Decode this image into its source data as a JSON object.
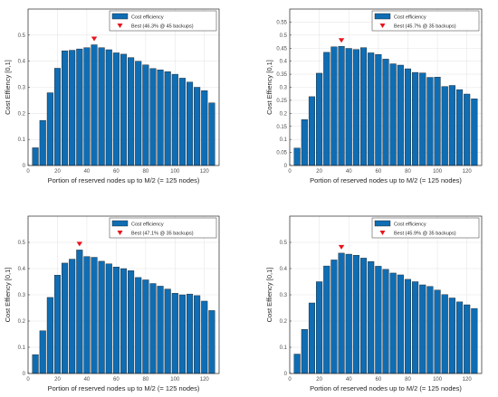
{
  "colors": {
    "bar": "#0f6db3",
    "bar_edge": "#1a1a1a",
    "marker": "#e8141b",
    "grid": "#e6e6e6",
    "axis": "#262626"
  },
  "chart_data": [
    {
      "type": "bar",
      "xlabel": "Portion of reserved nodes up to M/2 (= 125 nodes)",
      "ylabel": "Cost Effiency [0,1]",
      "xlim": [
        0,
        130
      ],
      "ylim": [
        0,
        0.6
      ],
      "xticks": [
        "0",
        "20",
        "40",
        "60",
        "80",
        "100",
        "120"
      ],
      "yticks": [
        "0",
        "0.1",
        "0.2",
        "0.3",
        "0.4",
        "0.5"
      ],
      "grid": true,
      "legend": {
        "placement": "top-right",
        "entries": [
          "Cost efficiency",
          "Best (46.3% @ 45 backups)"
        ]
      },
      "series": [
        {
          "name": "Cost efficiency",
          "x": [
            5,
            10,
            15,
            20,
            25,
            30,
            35,
            40,
            45,
            50,
            55,
            60,
            65,
            70,
            75,
            80,
            85,
            90,
            95,
            100,
            105,
            110,
            115,
            120,
            125
          ],
          "values": [
            0.068,
            0.173,
            0.279,
            0.373,
            0.44,
            0.442,
            0.447,
            0.452,
            0.463,
            0.452,
            0.444,
            0.432,
            0.427,
            0.414,
            0.4,
            0.386,
            0.372,
            0.367,
            0.36,
            0.35,
            0.335,
            0.32,
            0.3,
            0.287,
            0.24
          ]
        }
      ],
      "best": {
        "x": 45,
        "y": 0.463
      }
    },
    {
      "type": "bar",
      "xlabel": "Portion of reserved nodes up to M/2 (= 125 nodes)",
      "ylabel": "Cost Effiency [0,1]",
      "xlim": [
        0,
        130
      ],
      "ylim": [
        0,
        0.6
      ],
      "xticks": [
        "0",
        "20",
        "40",
        "60",
        "80",
        "100",
        "120"
      ],
      "yticks": [
        "0",
        "0.05",
        "0.1",
        "0.15",
        "0.2",
        "0.25",
        "0.3",
        "0.35",
        "0.4",
        "0.45",
        "0.5",
        "0.55"
      ],
      "grid": true,
      "legend": {
        "placement": "top-right",
        "entries": [
          "Cost efficiency",
          "Best (45.7% @ 35 backups)"
        ]
      },
      "series": [
        {
          "name": "Cost efficiency",
          "x": [
            5,
            10,
            15,
            20,
            25,
            30,
            35,
            40,
            45,
            50,
            55,
            60,
            65,
            70,
            75,
            80,
            85,
            90,
            95,
            100,
            105,
            110,
            115,
            120,
            125
          ],
          "values": [
            0.067,
            0.176,
            0.264,
            0.354,
            0.434,
            0.455,
            0.457,
            0.449,
            0.445,
            0.452,
            0.432,
            0.426,
            0.408,
            0.39,
            0.385,
            0.371,
            0.357,
            0.355,
            0.338,
            0.339,
            0.303,
            0.307,
            0.291,
            0.274,
            0.256
          ]
        }
      ],
      "best": {
        "x": 35,
        "y": 0.457
      }
    },
    {
      "type": "bar",
      "xlabel": "Portion of reserved nodes up to M/2 (= 125 nodes)",
      "ylabel": "Cost Effiency [0,1]",
      "xlim": [
        0,
        130
      ],
      "ylim": [
        0,
        0.6
      ],
      "xticks": [
        "0",
        "20",
        "40",
        "60",
        "80",
        "100",
        "120"
      ],
      "yticks": [
        "0",
        "0.1",
        "0.2",
        "0.3",
        "0.4",
        "0.5"
      ],
      "grid": true,
      "legend": {
        "placement": "top-right",
        "entries": [
          "Cost efficiency",
          "Best (47.1% @ 35 backups)"
        ]
      },
      "series": [
        {
          "name": "Cost efficiency",
          "x": [
            5,
            10,
            15,
            20,
            25,
            30,
            35,
            40,
            45,
            50,
            55,
            60,
            65,
            70,
            75,
            80,
            85,
            90,
            95,
            100,
            105,
            110,
            115,
            120,
            125
          ],
          "values": [
            0.072,
            0.163,
            0.29,
            0.375,
            0.421,
            0.436,
            0.471,
            0.446,
            0.443,
            0.428,
            0.418,
            0.406,
            0.4,
            0.392,
            0.366,
            0.357,
            0.343,
            0.333,
            0.322,
            0.306,
            0.3,
            0.303,
            0.297,
            0.276,
            0.24
          ]
        }
      ],
      "best": {
        "x": 35,
        "y": 0.471
      }
    },
    {
      "type": "bar",
      "xlabel": "Portion of reserved nodes up to M/2 (= 125 nodes)",
      "ylabel": "Cost Effiency [0,1]",
      "xlim": [
        0,
        130
      ],
      "ylim": [
        0,
        0.6
      ],
      "xticks": [
        "0",
        "20",
        "40",
        "60",
        "80",
        "100",
        "120"
      ],
      "yticks": [
        "0",
        "0.1",
        "0.2",
        "0.3",
        "0.4",
        "0.5"
      ],
      "grid": true,
      "legend": {
        "placement": "top-right",
        "entries": [
          "Cost efficiency",
          "Best (45.9% @ 35 backups)"
        ]
      },
      "series": [
        {
          "name": "Cost efficiency",
          "x": [
            5,
            10,
            15,
            20,
            25,
            30,
            35,
            40,
            45,
            50,
            55,
            60,
            65,
            70,
            75,
            80,
            85,
            90,
            95,
            100,
            105,
            110,
            115,
            120,
            125
          ],
          "values": [
            0.074,
            0.168,
            0.269,
            0.35,
            0.41,
            0.433,
            0.459,
            0.455,
            0.451,
            0.44,
            0.427,
            0.409,
            0.397,
            0.383,
            0.376,
            0.359,
            0.35,
            0.338,
            0.332,
            0.318,
            0.301,
            0.288,
            0.273,
            0.262,
            0.248
          ]
        }
      ],
      "best": {
        "x": 35,
        "y": 0.459
      }
    }
  ]
}
